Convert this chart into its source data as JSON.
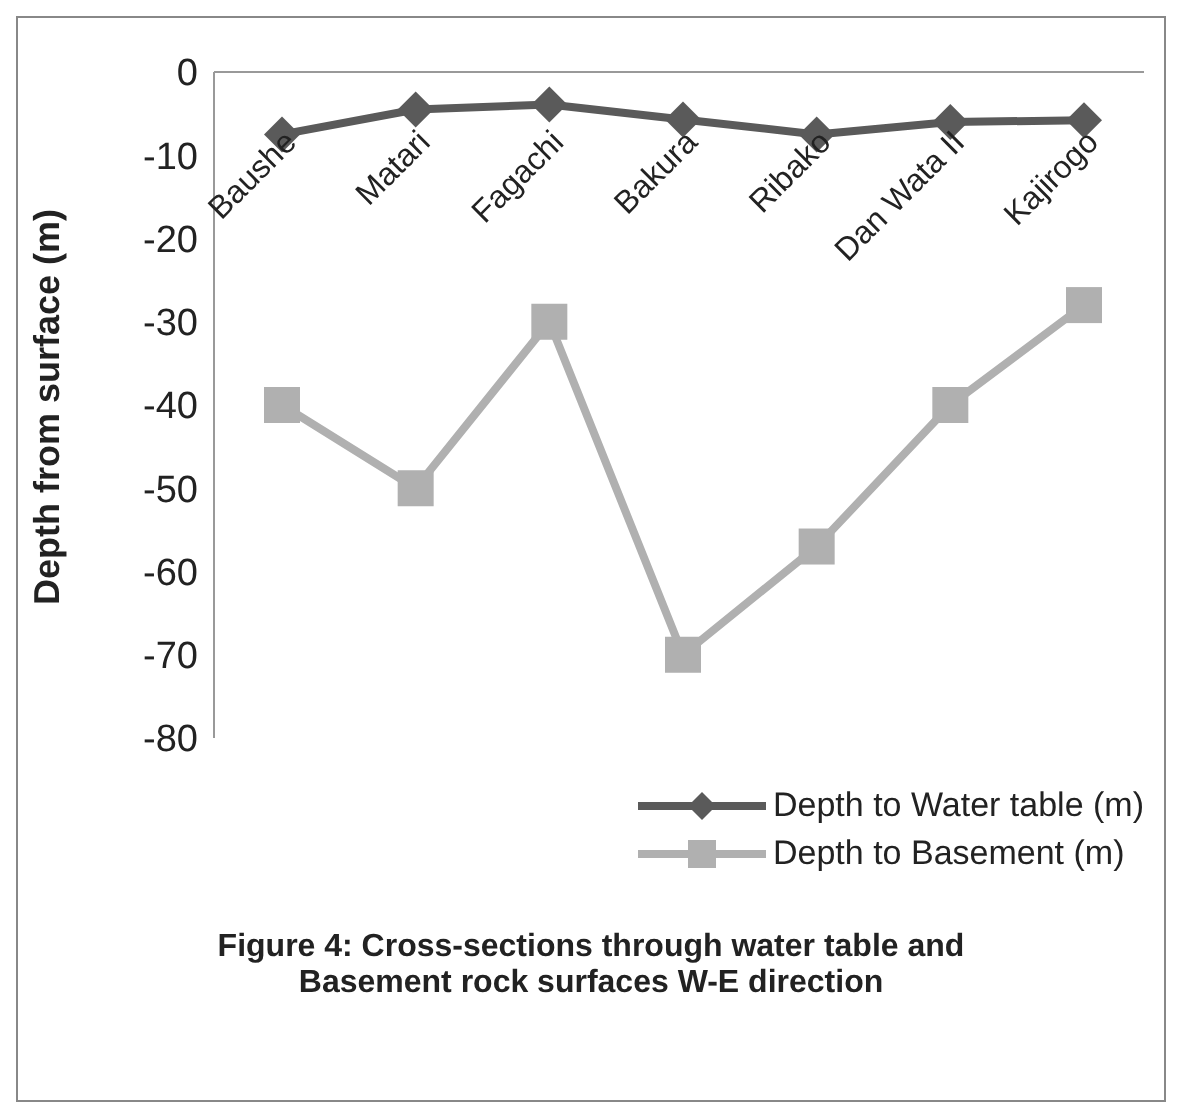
{
  "chart_data": {
    "type": "line",
    "ylabel": "Depth from surface (m)",
    "categories": [
      "Baushe",
      "Matari",
      "Fagachi",
      "Bakura",
      "Ribako",
      "Dan Wata II",
      "Kajirogo"
    ],
    "series": [
      {
        "name": "Depth to Water table (m)",
        "color": "#5a5a5a",
        "marker": "diamond",
        "values": [
          -7.5,
          -4.5,
          -3.9,
          -5.7,
          -7.5,
          -6,
          -5.8
        ]
      },
      {
        "name": "Depth to Basement (m)",
        "color": "#b0b0b0",
        "marker": "square",
        "values": [
          -40,
          -50,
          -30,
          -70,
          -57,
          -40,
          -28
        ]
      }
    ],
    "ylim": [
      -80,
      0
    ],
    "yticks": [
      0,
      -10,
      -20,
      -30,
      -40,
      -50,
      -60,
      -70,
      -80
    ],
    "grid": false,
    "legend": "bottom right",
    "annotations": [
      "Figure 4: Cross-sections through water table and Basement rock surfaces W-E direction"
    ]
  }
}
